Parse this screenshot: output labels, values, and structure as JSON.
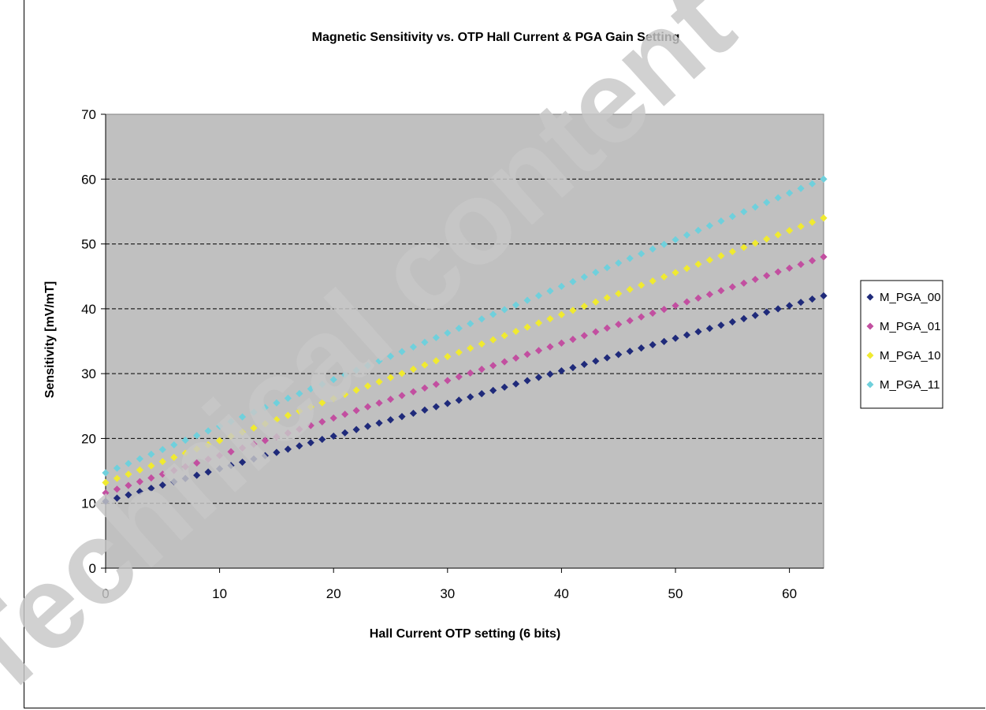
{
  "chart_data": {
    "type": "scatter",
    "title": "Magnetic Sensitivity vs. OTP Hall Current & PGA Gain Setting",
    "xlabel": "Hall Current OTP setting (6 bits)",
    "ylabel": "Sensitivity [mV/mT]",
    "xlim": [
      0,
      63
    ],
    "ylim": [
      0,
      70
    ],
    "xticks": [
      0,
      10,
      20,
      30,
      40,
      50,
      60
    ],
    "yticks": [
      0,
      10,
      20,
      30,
      40,
      50,
      60,
      70
    ],
    "grid": "horizontal dashed",
    "legend_position": "right",
    "plot_background": "#c0c0c0",
    "series": [
      {
        "name": "M_PGA_00",
        "color": "#1f2a7a",
        "marker": "diamond",
        "x_start": 0,
        "x_end": 63,
        "x_step": 1,
        "y_start": 10.3,
        "y_end": 42.0
      },
      {
        "name": "M_PGA_01",
        "color": "#c24fa0",
        "marker": "diamond",
        "x_start": 0,
        "x_end": 63,
        "x_step": 1,
        "y_start": 11.6,
        "y_end": 48.0
      },
      {
        "name": "M_PGA_10",
        "color": "#f0ea30",
        "marker": "diamond",
        "x_start": 0,
        "x_end": 63,
        "x_step": 1,
        "y_start": 13.2,
        "y_end": 54.0
      },
      {
        "name": "M_PGA_11",
        "color": "#6fd0dc",
        "marker": "diamond",
        "x_start": 0,
        "x_end": 63,
        "x_step": 1,
        "y_start": 14.7,
        "y_end": 60.0
      }
    ]
  },
  "watermark": "Technical content"
}
